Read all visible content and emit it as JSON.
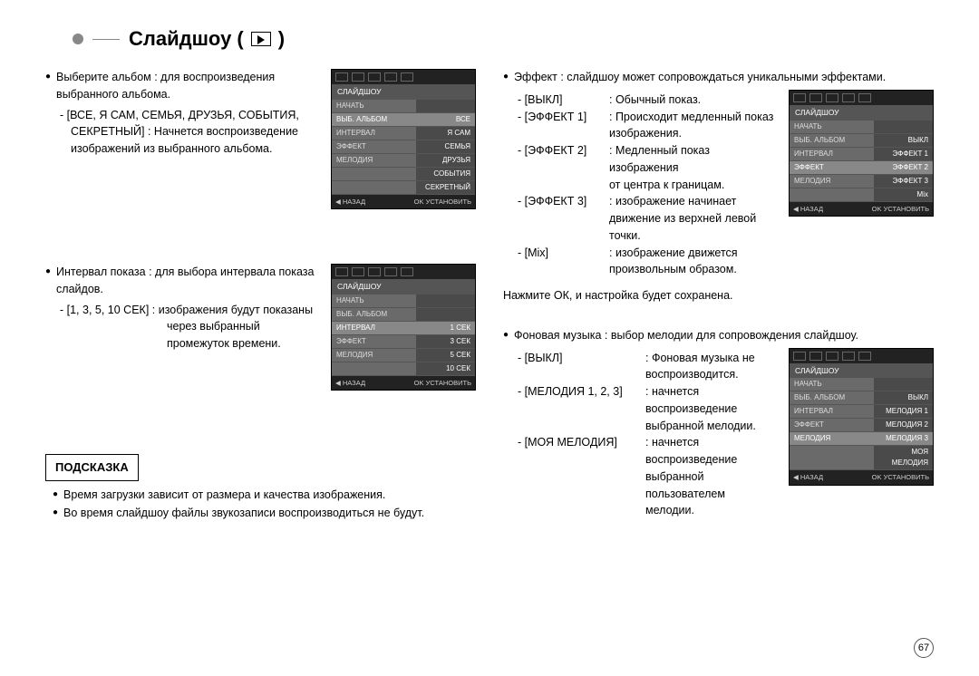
{
  "title": "Слайдшоу (",
  "title_close": ")",
  "page_number": "67",
  "left": {
    "album": {
      "heading": "Выберите альбом : для воспроизведения выбранного альбома.",
      "option_label": "- [ВСЕ, Я САМ, СЕМЬЯ, ДРУЗЬЯ, СОБЫТИЯ,",
      "option_label2": "СЕКРЕТНЫЙ] : Начнется воспроизведение",
      "option_label3": "изображений из выбранного альбома."
    },
    "interval": {
      "heading": "Интервал показа : для выбора интервала показа слайдов.",
      "option1": "- [1, 3, 5, 10 СЕК] : изображения будут показаны",
      "option2": "через выбранный",
      "option3": "промежуток времени."
    },
    "hint_title": "ПОДСКАЗКА",
    "hint1": "Время загрузки зависит от размера и качества изображения.",
    "hint2": "Во время слайдшоу файлы звукозаписи воспроизводиться не будут."
  },
  "right": {
    "effect": {
      "heading": "Эффект : слайдшоу может сопровождаться уникальными эффектами.",
      "rows": [
        {
          "label": "- [ВЫКЛ]",
          "desc": ": Обычный показ."
        },
        {
          "label": "- [ЭФФЕКТ 1]",
          "desc": ": Происходит медленный показ"
        },
        {
          "label": "",
          "desc": "  изображения."
        },
        {
          "label": "- [ЭФФЕКТ 2]",
          "desc": ": Медленный показ изображения"
        },
        {
          "label": "",
          "desc": "  от центра к границам."
        },
        {
          "label": "- [ЭФФЕКТ 3]",
          "desc": ": изображение начинает"
        },
        {
          "label": "",
          "desc": "  движение из верхней левой"
        },
        {
          "label": "",
          "desc": "  точки."
        },
        {
          "label": "- [Mix]",
          "desc": ": изображение движется произвольным образом."
        }
      ],
      "press_ok": "Нажмите ОК, и настройка будет сохранена."
    },
    "music": {
      "heading": "Фоновая музыка : выбор мелодии для сопровождения слайдшоу.",
      "rows": [
        {
          "label": "- [ВЫКЛ]",
          "desc": ": Фоновая музыка не"
        },
        {
          "label": "",
          "desc": "  воспроизводится."
        },
        {
          "label": "- [МЕЛОДИЯ 1, 2, 3]",
          "desc": ": начнется воспроизведение"
        },
        {
          "label": "",
          "desc": "  выбранной мелодии."
        },
        {
          "label": "- [МОЯ МЕЛОДИЯ]",
          "desc": ": начнется воспроизведение"
        },
        {
          "label": "",
          "desc": "  выбранной пользователем"
        },
        {
          "label": "",
          "desc": "  мелодии."
        }
      ]
    }
  },
  "menu_album": {
    "title": "СЛАЙДШОУ",
    "rows": [
      {
        "l": "НАЧАТЬ",
        "r": ""
      },
      {
        "l": "ВЫБ. АЛЬБОМ",
        "r": "ВСЕ",
        "sel": true
      },
      {
        "l": "ИНТЕРВАЛ",
        "r": "Я САМ"
      },
      {
        "l": "ЭФФЕКТ",
        "r": "СЕМЬЯ"
      },
      {
        "l": "МЕЛОДИЯ",
        "r": "ДРУЗЬЯ"
      },
      {
        "l": "",
        "r": "СОБЫТИЯ"
      },
      {
        "l": "",
        "r": "СЕКРЕТНЫЙ"
      }
    ],
    "back": "◀  НАЗАД",
    "ok": "OK  УСТАНОВИТЬ"
  },
  "menu_interval": {
    "title": "СЛАЙДШОУ",
    "rows": [
      {
        "l": "НАЧАТЬ",
        "r": ""
      },
      {
        "l": "ВЫБ. АЛЬБОМ",
        "r": ""
      },
      {
        "l": "ИНТЕРВАЛ",
        "r": "1 СЕК",
        "sel": true
      },
      {
        "l": "ЭФФЕКТ",
        "r": "3 СЕК"
      },
      {
        "l": "МЕЛОДИЯ",
        "r": "5 СЕК"
      },
      {
        "l": "",
        "r": "10 СЕК"
      }
    ],
    "back": "◀  НАЗАД",
    "ok": "OK  УСТАНОВИТЬ"
  },
  "menu_effect": {
    "title": "СЛАЙДШОУ",
    "rows": [
      {
        "l": "НАЧАТЬ",
        "r": ""
      },
      {
        "l": "ВЫБ. АЛЬБОМ",
        "r": "ВЫКЛ"
      },
      {
        "l": "ИНТЕРВАЛ",
        "r": "ЭФФЕКТ 1"
      },
      {
        "l": "ЭФФЕКТ",
        "r": "ЭФФЕКТ 2",
        "sel": true
      },
      {
        "l": "МЕЛОДИЯ",
        "r": "ЭФФЕКТ 3"
      },
      {
        "l": "",
        "r": "Mix"
      }
    ],
    "back": "◀  НАЗАД",
    "ok": "OK  УСТАНОВИТЬ"
  },
  "menu_music": {
    "title": "СЛАЙДШОУ",
    "rows": [
      {
        "l": "НАЧАТЬ",
        "r": ""
      },
      {
        "l": "ВЫБ. АЛЬБОМ",
        "r": "ВЫКЛ"
      },
      {
        "l": "ИНТЕРВАЛ",
        "r": "МЕЛОДИЯ 1"
      },
      {
        "l": "ЭФФЕКТ",
        "r": "МЕЛОДИЯ 2"
      },
      {
        "l": "МЕЛОДИЯ",
        "r": "МЕЛОДИЯ 3",
        "sel": true
      },
      {
        "l": "",
        "r": "МОЯ МЕЛОДИЯ"
      }
    ],
    "back": "◀  НАЗАД",
    "ok": "OK  УСТАНОВИТЬ"
  }
}
